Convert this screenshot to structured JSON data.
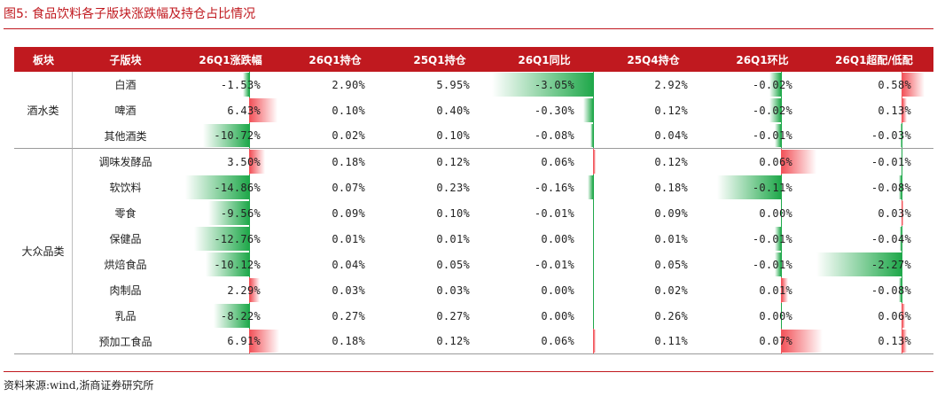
{
  "title": "图5:  食品饮料各子版块涨跌幅及持仓占比情况",
  "source": "资料来源:wind,浙商证券研究所",
  "columns": [
    "板块",
    "子版块",
    "26Q1涨跌幅",
    "26Q1持仓",
    "25Q1持仓",
    "26Q1同比",
    "25Q4持仓",
    "26Q1环比",
    "26Q1超配/低配"
  ],
  "groups": [
    {
      "label": "酒水类",
      "span": 3
    },
    {
      "label": "大众品类",
      "span": 8
    }
  ],
  "rows": [
    {
      "sub": "白酒",
      "chg": "-1.53%",
      "h26q1": "2.90%",
      "h25q1": "5.95%",
      "yoy": "-3.05%",
      "h25q4": "2.92%",
      "qoq": "-0.02%",
      "ow": "0.58%"
    },
    {
      "sub": "啤酒",
      "chg": "6.43%",
      "h26q1": "0.10%",
      "h25q1": "0.40%",
      "yoy": "-0.30%",
      "h25q4": "0.12%",
      "qoq": "-0.02%",
      "ow": "0.13%"
    },
    {
      "sub": "其他酒类",
      "chg": "-10.72%",
      "h26q1": "0.02%",
      "h25q1": "0.10%",
      "yoy": "-0.08%",
      "h25q4": "0.04%",
      "qoq": "-0.01%",
      "ow": "-0.03%"
    },
    {
      "sub": "调味发酵品",
      "chg": "3.50%",
      "h26q1": "0.18%",
      "h25q1": "0.12%",
      "yoy": "0.06%",
      "h25q4": "0.12%",
      "qoq": "0.06%",
      "ow": "-0.01%"
    },
    {
      "sub": "软饮料",
      "chg": "-14.86%",
      "h26q1": "0.07%",
      "h25q1": "0.23%",
      "yoy": "-0.16%",
      "h25q4": "0.18%",
      "qoq": "-0.11%",
      "ow": "-0.08%"
    },
    {
      "sub": "零食",
      "chg": "-9.56%",
      "h26q1": "0.09%",
      "h25q1": "0.10%",
      "yoy": "-0.01%",
      "h25q4": "0.09%",
      "qoq": "0.00%",
      "ow": "0.03%"
    },
    {
      "sub": "保健品",
      "chg": "-12.76%",
      "h26q1": "0.01%",
      "h25q1": "0.01%",
      "yoy": "0.00%",
      "h25q4": "0.01%",
      "qoq": "-0.01%",
      "ow": "-0.04%"
    },
    {
      "sub": "烘焙食品",
      "chg": "-10.12%",
      "h26q1": "0.04%",
      "h25q1": "0.05%",
      "yoy": "-0.01%",
      "h25q4": "0.05%",
      "qoq": "-0.01%",
      "ow": "-2.27%"
    },
    {
      "sub": "肉制品",
      "chg": "2.29%",
      "h26q1": "0.03%",
      "h25q1": "0.03%",
      "yoy": "0.00%",
      "h25q4": "0.02%",
      "qoq": "0.01%",
      "ow": "-0.08%"
    },
    {
      "sub": "乳品",
      "chg": "-8.22%",
      "h26q1": "0.27%",
      "h25q1": "0.27%",
      "yoy": "0.00%",
      "h25q4": "0.26%",
      "qoq": "0.00%",
      "ow": "0.06%"
    },
    {
      "sub": "预加工食品",
      "chg": "6.91%",
      "h26q1": "0.18%",
      "h25q1": "0.12%",
      "yoy": "0.06%",
      "h25q4": "0.11%",
      "qoq": "0.07%",
      "ow": "0.13%"
    }
  ],
  "databars": {
    "chg": [
      -1.53,
      6.43,
      -10.72,
      3.5,
      -14.86,
      -9.56,
      -12.76,
      -10.12,
      2.29,
      -8.22,
      6.91
    ],
    "yoy": [
      -3.05,
      -0.3,
      -0.08,
      0.06,
      -0.16,
      -0.01,
      0.0,
      -0.01,
      0.0,
      0.0,
      0.06
    ],
    "qoq": [
      -0.02,
      -0.02,
      -0.01,
      0.06,
      -0.11,
      0.0,
      -0.01,
      -0.01,
      0.01,
      0.0,
      0.07
    ],
    "ow": [
      0.58,
      0.13,
      -0.03,
      -0.01,
      -0.08,
      0.03,
      -0.04,
      -2.27,
      -0.08,
      0.06,
      0.13
    ],
    "positive_color": "#f2545b",
    "negative_color": "#1fa84a"
  }
}
